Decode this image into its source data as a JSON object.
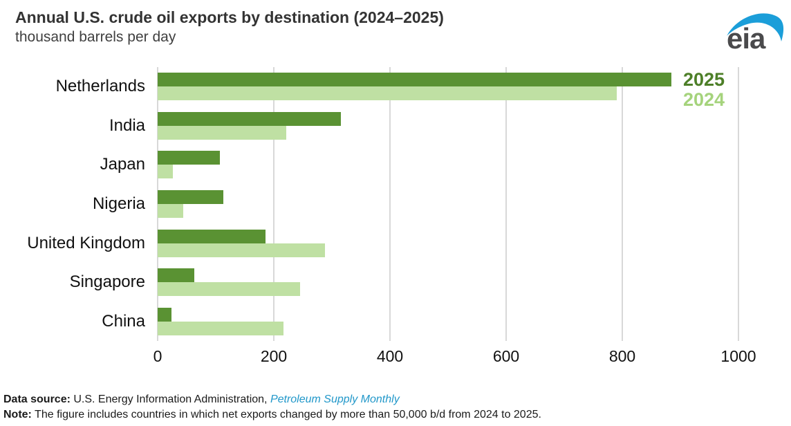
{
  "header": {
    "title": "Annual U.S. crude oil exports by destination (2024–2025)",
    "subtitle": "thousand barrels per day",
    "logo_text": "eia",
    "logo_swoosh_color": "#1b9ed9",
    "logo_text_color": "#4a4a4c"
  },
  "chart_data": {
    "type": "bar",
    "orientation": "horizontal",
    "title": "Annual U.S. crude oil exports by destination (2024–2025)",
    "ylabel": "",
    "xlabel": "thousand barrels per day",
    "categories": [
      "Netherlands",
      "India",
      "Japan",
      "Nigeria",
      "United Kingdom",
      "Singapore",
      "China"
    ],
    "series": [
      {
        "name": "2025",
        "color": "#5a9233",
        "label_color": "#4d7f28",
        "values": [
          885,
          315,
          107,
          113,
          186,
          63,
          24
        ]
      },
      {
        "name": "2024",
        "color": "#bfe0a3",
        "label_color": "#a5d37c",
        "values": [
          790,
          222,
          26,
          44,
          288,
          245,
          217
        ]
      }
    ],
    "x_ticks": [
      0,
      200,
      400,
      600,
      800,
      1000
    ],
    "xlim": [
      0,
      1000
    ],
    "grid": "vertical",
    "gridline_color": "#d8d8d8",
    "legend_position": "top-right"
  },
  "footer": {
    "data_source_label": "Data source:",
    "data_source_text": " U.S. Energy Information Administration, ",
    "data_source_link": "Petroleum Supply Monthly",
    "note_label": "Note:",
    "note_text": " The figure includes countries in which net exports changed by more than 50,000 b/d from 2024 to 2025."
  }
}
